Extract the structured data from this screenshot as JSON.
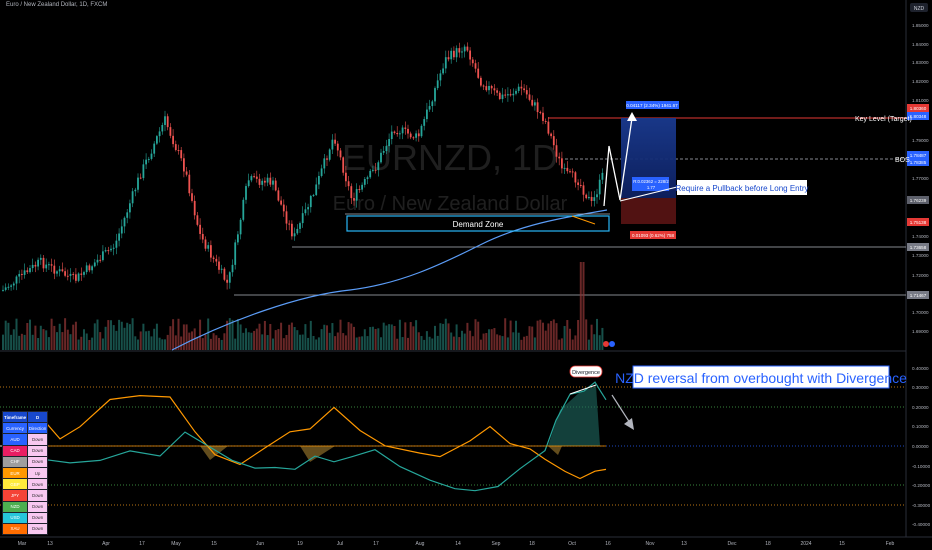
{
  "header": {
    "title": "Euro / New Zealand Dollar, 1D, FXCM"
  },
  "price_axis": {
    "currency": "NZD",
    "ticks": [
      "1.85000",
      "1.84000",
      "1.83000",
      "1.82000",
      "1.81000",
      "1.79000",
      "1.78000",
      "1.77000",
      "1.76000",
      "1.74000",
      "1.73000",
      "1.72000",
      "1.71000",
      "1.70000",
      "1.69000"
    ],
    "labels": [
      {
        "text": "1.80360",
        "color": "#e53935"
      },
      {
        "text": "1.80348",
        "color": "#2962ff"
      },
      {
        "text": "1.78487",
        "color": "#2962ff"
      },
      {
        "text": "1.78385",
        "color": "#2962ff"
      },
      {
        "text": "1.76239",
        "color": "#5d606b"
      },
      {
        "text": "1.75138",
        "color": "#e53935"
      },
      {
        "text": "1.73658",
        "color": "#787b86"
      },
      {
        "text": "1.71467",
        "color": "#787b86"
      }
    ]
  },
  "watermark": {
    "symbol": "EURNZD, 1D",
    "name": "Euro / New Zealand Dollar"
  },
  "annotations": {
    "key_level": "Key Level (Target)",
    "bos": "BOS",
    "pullback": "Require a Pullback before Long Entry",
    "demand_zone": "Demand Zone",
    "divergence": "Divergence",
    "nzd_reversal": "NZD reversal from overbought with Divergence"
  },
  "position_tool": {
    "target_label": "0.04117 (2.34%) 1941.67",
    "entry_line1": "R:0.02362 = 228/2",
    "entry_line2": "1.77",
    "stop_label": "0.01093 (0.62%) 758"
  },
  "oscillator_axis": {
    "ticks": [
      "0.40000",
      "0.30000",
      "0.20000",
      "0.10000",
      "0.00000",
      "-0.10000",
      "-0.20000",
      "-0.30000",
      "-0.40000"
    ]
  },
  "table": {
    "title_left": "Timeframe",
    "title_right": "D",
    "col_currency": "Currency",
    "col_direction": "Direction",
    "rows": [
      {
        "currency": "AUD",
        "direction": "Down",
        "color": "#2962ff"
      },
      {
        "currency": "CAD",
        "direction": "Down",
        "color": "#e91e63"
      },
      {
        "currency": "CHF",
        "direction": "Down",
        "color": "#9e9e9e"
      },
      {
        "currency": "EUR",
        "direction": "Up",
        "color": "#ff9800"
      },
      {
        "currency": "GBP",
        "direction": "Down",
        "color": "#ffeb3b"
      },
      {
        "currency": "JPY",
        "direction": "Down",
        "color": "#f44336"
      },
      {
        "currency": "NZD",
        "direction": "Down",
        "color": "#4caf50"
      },
      {
        "currency": "USD",
        "direction": "Down",
        "color": "#26c6da"
      },
      {
        "currency": "XAU",
        "direction": "Down",
        "color": "#ff6d00"
      }
    ]
  },
  "time_axis": {
    "labels": [
      "Mar",
      "13",
      "Apr",
      "17",
      "May",
      "15",
      "Jun",
      "19",
      "Jul",
      "17",
      "Aug",
      "14",
      "Sep",
      "18",
      "Oct",
      "16",
      "Nov",
      "13",
      "Dec",
      "18",
      "2024",
      "15",
      "Feb"
    ]
  }
}
